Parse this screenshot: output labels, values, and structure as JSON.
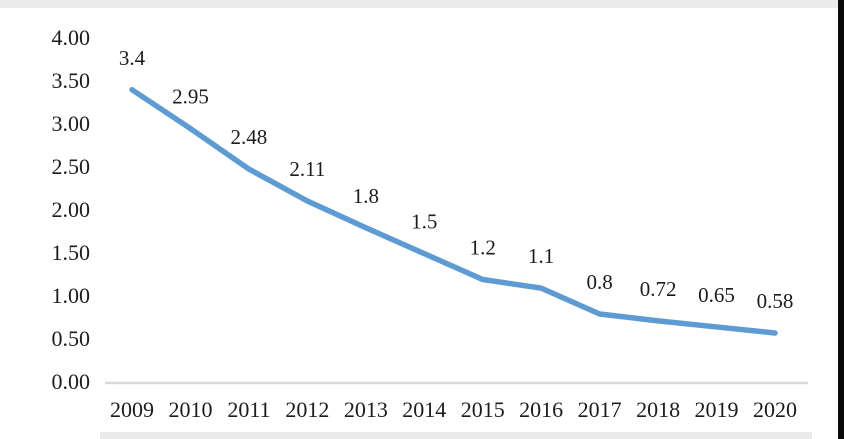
{
  "chart_data": {
    "type": "line",
    "title": "",
    "xlabel": "",
    "ylabel": "",
    "categories": [
      "2009",
      "2010",
      "2011",
      "2012",
      "2013",
      "2014",
      "2015",
      "2016",
      "2017",
      "2018",
      "2019",
      "2020"
    ],
    "values": [
      3.4,
      2.95,
      2.48,
      2.11,
      1.8,
      1.5,
      1.2,
      1.1,
      0.8,
      0.72,
      0.65,
      0.58
    ],
    "data_labels": [
      "3.4",
      "2.95",
      "2.48",
      "2.11",
      "1.8",
      "1.5",
      "1.2",
      "1.1",
      "0.8",
      "0.72",
      "0.65",
      "0.58"
    ],
    "y_ticks": [
      "4.00",
      "3.50",
      "3.00",
      "2.50",
      "2.00",
      "1.50",
      "1.00",
      "0.50",
      "0.00"
    ],
    "ylim": [
      0,
      4
    ],
    "grid": false,
    "legend": false,
    "series_name": "",
    "colors": {
      "line": "#5E9BD3",
      "axis": "#d9d9d9",
      "text": "#1c1c1c"
    }
  }
}
